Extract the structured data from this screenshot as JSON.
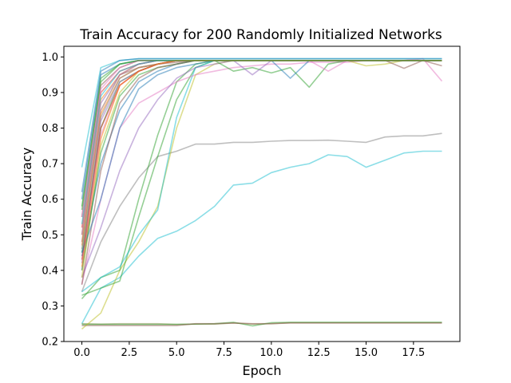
{
  "chart_data": {
    "type": "line",
    "title": "Train Accuracy for 200 Randomly Initialized Networks",
    "xlabel": "Epoch",
    "ylabel": "Train Accuracy",
    "xlim": [
      -0.95,
      19.95
    ],
    "ylim": [
      0.2,
      1.03
    ],
    "xticks": [
      "0.0",
      "2.5",
      "5.0",
      "7.5",
      "10.0",
      "12.5",
      "15.0",
      "17.5"
    ],
    "yticks": [
      "0.2",
      "0.3",
      "0.4",
      "0.5",
      "0.6",
      "0.7",
      "0.8",
      "0.9",
      "1.0"
    ],
    "grid": false,
    "legend": "none",
    "epochs": [
      0,
      1,
      2,
      3,
      4,
      5,
      6,
      7,
      8,
      9,
      10,
      11,
      12,
      13,
      14,
      15,
      16,
      17,
      18,
      19
    ],
    "series": [
      {
        "color": "#17becf",
        "values": [
          0.25,
          0.35,
          0.38,
          0.44,
          0.49,
          0.51,
          0.54,
          0.58,
          0.64,
          0.645,
          0.675,
          0.69,
          0.7,
          0.725,
          0.72,
          0.69,
          0.71,
          0.73,
          0.735,
          0.735
        ]
      },
      {
        "color": "#7f7f7f",
        "values": [
          0.34,
          0.48,
          0.58,
          0.66,
          0.72,
          0.735,
          0.755,
          0.755,
          0.76,
          0.76,
          0.763,
          0.765,
          0.765,
          0.766,
          0.763,
          0.76,
          0.775,
          0.778,
          0.778,
          0.785
        ]
      },
      {
        "color": "#8c8c4a",
        "values": [
          0.25,
          0.249,
          0.25,
          0.25,
          0.25,
          0.248,
          0.249,
          0.249,
          0.252,
          0.249,
          0.25,
          0.253,
          0.253,
          0.253,
          0.253,
          0.253,
          0.253,
          0.253,
          0.253,
          0.253
        ]
      },
      {
        "color": "#2ca02c",
        "values": [
          0.248,
          0.248,
          0.248,
          0.248,
          0.248,
          0.248,
          0.249,
          0.25,
          0.254,
          0.244,
          0.253,
          0.254,
          0.254,
          0.254,
          0.254,
          0.254,
          0.254,
          0.254,
          0.254,
          0.254
        ]
      },
      {
        "color": "#8c564b",
        "values": [
          0.245,
          0.245,
          0.245,
          0.245,
          0.245,
          0.245,
          0.25,
          0.25,
          0.252,
          0.25,
          0.25,
          0.252,
          0.252,
          0.252,
          0.252,
          0.252,
          0.252,
          0.252,
          0.252,
          0.252
        ]
      },
      {
        "color": "#bcbd22",
        "values": [
          0.235,
          0.28,
          0.4,
          0.48,
          0.58,
          0.8,
          0.95,
          0.98,
          0.99,
          0.99,
          0.99,
          0.99,
          0.99,
          0.99,
          0.99,
          0.99,
          0.99,
          0.99,
          0.99,
          0.99
        ]
      },
      {
        "color": "#2ca02c",
        "values": [
          0.33,
          0.35,
          0.37,
          0.55,
          0.72,
          0.88,
          0.97,
          0.99,
          0.99,
          0.99,
          0.99,
          0.99,
          0.99,
          0.99,
          0.99,
          0.99,
          0.99,
          0.99,
          0.99,
          0.99
        ]
      },
      {
        "color": "#2ca02c",
        "values": [
          0.32,
          0.38,
          0.4,
          0.6,
          0.78,
          0.93,
          0.98,
          0.99,
          0.99,
          0.99,
          0.99,
          0.99,
          0.99,
          0.99,
          0.99,
          0.99,
          0.99,
          0.99,
          0.99,
          0.99
        ]
      },
      {
        "color": "#17becf",
        "values": [
          0.34,
          0.38,
          0.41,
          0.5,
          0.57,
          0.83,
          0.97,
          0.99,
          0.99,
          0.99,
          0.99,
          0.99,
          0.99,
          0.99,
          0.99,
          0.99,
          0.99,
          0.99,
          0.99,
          0.99
        ]
      },
      {
        "color": "#e377c2",
        "values": [
          0.36,
          0.6,
          0.8,
          0.87,
          0.9,
          0.93,
          0.95,
          0.96,
          0.97,
          0.975,
          0.98,
          0.98,
          0.985,
          0.985,
          0.985,
          0.99,
          0.99,
          0.99,
          0.995,
          0.932
        ]
      },
      {
        "color": "#9467bd",
        "values": [
          0.38,
          0.52,
          0.68,
          0.8,
          0.88,
          0.94,
          0.97,
          0.98,
          0.99,
          0.99,
          0.99,
          0.99,
          0.99,
          0.99,
          0.99,
          0.99,
          0.99,
          0.99,
          0.99,
          0.99
        ]
      },
      {
        "color": "#bcbd22",
        "values": [
          0.38,
          0.75,
          0.9,
          0.96,
          0.98,
          0.99,
          0.99,
          0.99,
          0.99,
          0.99,
          0.99,
          0.99,
          0.99,
          0.99,
          0.99,
          0.975,
          0.98,
          0.99,
          0.99,
          0.99
        ]
      },
      {
        "color": "#8c564b",
        "values": [
          0.48,
          0.85,
          0.95,
          0.97,
          0.98,
          0.985,
          0.99,
          0.99,
          0.99,
          0.99,
          0.99,
          0.99,
          0.99,
          0.99,
          0.99,
          0.99,
          0.99,
          0.968,
          0.99,
          0.975
        ]
      },
      {
        "color": "#2ca02c",
        "values": [
          0.45,
          0.8,
          0.93,
          0.96,
          0.98,
          0.99,
          0.99,
          0.99,
          0.96,
          0.97,
          0.955,
          0.97,
          0.915,
          0.98,
          0.99,
          0.99,
          0.99,
          0.99,
          0.99,
          0.99
        ]
      },
      {
        "color": "#1f77b4",
        "values": [
          0.44,
          0.7,
          0.85,
          0.93,
          0.96,
          0.98,
          0.99,
          0.99,
          0.99,
          0.99,
          0.99,
          0.94,
          0.99,
          0.99,
          0.99,
          0.99,
          0.99,
          0.99,
          0.99,
          0.99
        ]
      },
      {
        "color": "#e377c2",
        "values": [
          0.4,
          0.78,
          0.92,
          0.96,
          0.98,
          0.99,
          0.99,
          0.99,
          0.99,
          0.99,
          0.99,
          0.99,
          0.99,
          0.96,
          0.99,
          0.99,
          0.99,
          0.99,
          0.99,
          0.99
        ]
      },
      {
        "color": "#ff7f0e",
        "values": [
          0.5,
          0.88,
          0.95,
          0.98,
          0.99,
          0.99,
          0.99,
          0.99,
          0.99,
          0.99,
          0.99,
          0.99,
          0.99,
          0.99,
          0.99,
          0.99,
          0.99,
          0.99,
          0.99,
          0.99
        ]
      },
      {
        "color": "#9467bd",
        "values": [
          0.42,
          0.82,
          0.93,
          0.96,
          0.98,
          0.99,
          0.99,
          0.99,
          0.99,
          0.95,
          0.99,
          0.99,
          0.99,
          0.99,
          0.99,
          0.99,
          0.99,
          0.99,
          0.99,
          0.99
        ]
      },
      {
        "color": "#d62728",
        "values": [
          0.52,
          0.9,
          0.96,
          0.98,
          0.99,
          0.99,
          0.99,
          0.99,
          0.99,
          0.99,
          0.99,
          0.99,
          0.99,
          0.99,
          0.99,
          0.99,
          0.99,
          0.99,
          0.99,
          0.99
        ]
      },
      {
        "color": "#1f77b4",
        "values": [
          0.6,
          0.95,
          0.98,
          0.99,
          0.99,
          0.99,
          0.99,
          0.99,
          0.99,
          0.99,
          0.99,
          0.99,
          0.99,
          0.99,
          0.99,
          0.99,
          0.99,
          0.99,
          0.99,
          0.99
        ]
      },
      {
        "color": "#17becf",
        "values": [
          0.69,
          0.97,
          0.99,
          0.995,
          0.995,
          0.995,
          0.995,
          0.995,
          0.995,
          0.995,
          0.995,
          0.995,
          0.995,
          0.995,
          0.995,
          0.995,
          0.995,
          0.995,
          0.995,
          0.995
        ]
      },
      {
        "color": "#2ca02c",
        "values": [
          0.58,
          0.93,
          0.98,
          0.99,
          0.99,
          0.99,
          0.99,
          0.99,
          0.99,
          0.99,
          0.99,
          0.99,
          0.99,
          0.99,
          0.99,
          0.99,
          0.99,
          0.99,
          0.99,
          0.99
        ]
      },
      {
        "color": "#8c564b",
        "values": [
          0.55,
          0.92,
          0.97,
          0.99,
          0.99,
          0.99,
          0.99,
          0.99,
          0.99,
          0.99,
          0.99,
          0.99,
          0.99,
          0.99,
          0.99,
          0.99,
          0.99,
          0.99,
          0.99,
          0.99
        ]
      },
      {
        "color": "#ff7f0e",
        "values": [
          0.47,
          0.84,
          0.94,
          0.97,
          0.98,
          0.99,
          0.99,
          0.99,
          0.99,
          0.99,
          0.99,
          0.99,
          0.99,
          0.99,
          0.99,
          0.99,
          0.99,
          0.99,
          0.99,
          0.99
        ]
      },
      {
        "color": "#d62728",
        "values": [
          0.43,
          0.8,
          0.92,
          0.96,
          0.98,
          0.99,
          0.99,
          0.99,
          0.99,
          0.99,
          0.99,
          0.99,
          0.99,
          0.99,
          0.99,
          0.99,
          0.99,
          0.99,
          0.99,
          0.99
        ]
      },
      {
        "color": "#1f77b4",
        "values": [
          0.62,
          0.96,
          0.99,
          0.995,
          0.995,
          0.995,
          0.995,
          0.995,
          0.995,
          0.995,
          0.995,
          0.995,
          0.995,
          0.995,
          0.995,
          0.995,
          0.995,
          0.995,
          0.995,
          0.995
        ]
      },
      {
        "color": "#9467bd",
        "values": [
          0.5,
          0.87,
          0.95,
          0.98,
          0.99,
          0.99,
          0.99,
          0.99,
          0.99,
          0.99,
          0.99,
          0.99,
          0.99,
          0.99,
          0.99,
          0.99,
          0.99,
          0.99,
          0.99,
          0.99
        ]
      },
      {
        "color": "#2ca02c",
        "values": [
          0.4,
          0.73,
          0.89,
          0.95,
          0.97,
          0.98,
          0.99,
          0.99,
          0.99,
          0.99,
          0.99,
          0.99,
          0.99,
          0.99,
          0.99,
          0.99,
          0.99,
          0.99,
          0.99,
          0.99
        ]
      },
      {
        "color": "#e377c2",
        "values": [
          0.55,
          0.91,
          0.97,
          0.99,
          0.99,
          0.99,
          0.99,
          0.99,
          0.99,
          0.99,
          0.99,
          0.99,
          0.99,
          0.99,
          0.99,
          0.99,
          0.99,
          0.99,
          0.99,
          0.99
        ]
      },
      {
        "color": "#8c564b",
        "values": [
          0.36,
          0.68,
          0.87,
          0.94,
          0.97,
          0.98,
          0.99,
          0.99,
          0.99,
          0.99,
          0.99,
          0.99,
          0.99,
          0.99,
          0.99,
          0.99,
          0.99,
          0.99,
          0.99,
          0.99
        ]
      },
      {
        "color": "#1f77b4",
        "values": [
          0.45,
          0.6,
          0.8,
          0.91,
          0.95,
          0.97,
          0.98,
          0.99,
          0.99,
          0.99,
          0.99,
          0.99,
          0.99,
          0.99,
          0.99,
          0.99,
          0.99,
          0.99,
          0.99,
          0.99
        ]
      },
      {
        "color": "#17becf",
        "values": [
          0.53,
          0.89,
          0.96,
          0.98,
          0.99,
          0.99,
          0.99,
          0.99,
          0.99,
          0.99,
          0.99,
          0.99,
          0.99,
          0.99,
          0.99,
          0.99,
          0.99,
          0.99,
          0.99,
          0.99
        ]
      },
      {
        "color": "#7f7f7f",
        "values": [
          0.46,
          0.83,
          0.94,
          0.97,
          0.98,
          0.99,
          0.99,
          0.99,
          0.99,
          0.99,
          0.99,
          0.99,
          0.99,
          0.99,
          0.99,
          0.99,
          0.99,
          0.99,
          0.99,
          0.99
        ]
      },
      {
        "color": "#ff7f0e",
        "values": [
          0.41,
          0.77,
          0.92,
          0.96,
          0.98,
          0.99,
          0.99,
          0.99,
          0.99,
          0.99,
          0.99,
          0.99,
          0.99,
          0.99,
          0.99,
          0.99,
          0.99,
          0.99,
          0.99,
          0.99
        ]
      },
      {
        "color": "#2ca02c",
        "values": [
          0.57,
          0.94,
          0.98,
          0.99,
          0.99,
          0.99,
          0.99,
          0.99,
          0.99,
          0.99,
          0.99,
          0.99,
          0.99,
          0.99,
          0.99,
          0.99,
          0.99,
          0.99,
          0.99,
          0.99
        ]
      }
    ]
  }
}
